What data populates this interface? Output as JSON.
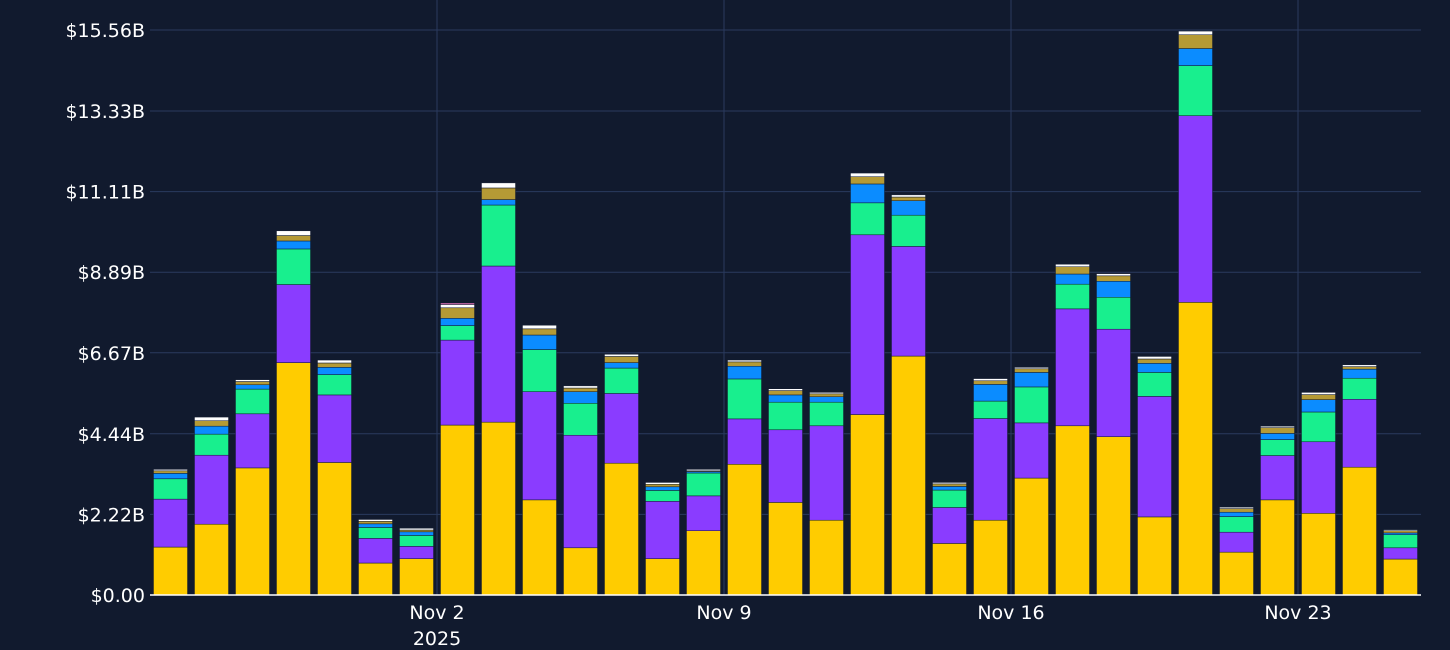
{
  "chart_data": {
    "type": "bar",
    "stacked": true,
    "y_tick_labels": [
      "$0.00",
      "$2.22B",
      "$4.44B",
      "$6.67B",
      "$8.89B",
      "$11.11B",
      "$13.33B",
      "$15.56B"
    ],
    "y_tick_values": [
      0,
      2.22,
      4.44,
      6.67,
      8.89,
      11.11,
      13.33,
      15.56
    ],
    "ylim": [
      0,
      15.56
    ],
    "x_tick_labels": [
      {
        "label": "Nov 2",
        "sublabel": "2025",
        "index": 6.5
      },
      {
        "label": "Nov 9",
        "index": 13.5
      },
      {
        "label": "Nov 16",
        "index": 20.5
      },
      {
        "label": "Nov 23",
        "index": 27.5
      }
    ],
    "grid": true,
    "series": [
      {
        "color": "#ffcc00",
        "values": [
          1.32,
          1.95,
          3.5,
          6.4,
          3.65,
          0.88,
          1.0,
          4.68,
          4.76,
          2.62,
          1.3,
          3.63,
          1.0,
          1.77,
          3.6,
          2.55,
          2.06,
          4.97,
          6.58,
          1.42,
          2.06,
          3.22,
          4.66,
          4.36,
          2.15,
          8.06,
          1.18,
          2.62,
          2.25,
          3.52,
          0.99
        ]
      },
      {
        "color": "#8a3cff",
        "values": [
          1.32,
          1.9,
          1.49,
          2.15,
          1.86,
          0.68,
          0.34,
          2.34,
          4.3,
          2.98,
          3.1,
          1.92,
          1.58,
          0.96,
          1.25,
          2.0,
          2.6,
          4.95,
          3.02,
          0.99,
          2.8,
          1.52,
          3.22,
          2.96,
          3.32,
          5.14,
          0.55,
          1.22,
          1.97,
          1.87,
          0.31
        ]
      },
      {
        "color": "#18ef8e",
        "values": [
          0.56,
          0.58,
          0.68,
          0.98,
          0.56,
          0.3,
          0.3,
          0.4,
          1.68,
          1.16,
          0.88,
          0.7,
          0.3,
          0.63,
          1.1,
          0.76,
          0.65,
          0.88,
          0.86,
          0.48,
          0.48,
          0.99,
          0.68,
          0.88,
          0.66,
          1.38,
          0.43,
          0.44,
          0.82,
          0.58,
          0.36
        ]
      },
      {
        "color": "#0b8cff",
        "values": [
          0.15,
          0.22,
          0.12,
          0.22,
          0.2,
          0.1,
          0.1,
          0.2,
          0.15,
          0.4,
          0.32,
          0.15,
          0.1,
          0.04,
          0.35,
          0.2,
          0.15,
          0.52,
          0.4,
          0.1,
          0.46,
          0.4,
          0.28,
          0.44,
          0.25,
          0.47,
          0.12,
          0.17,
          0.34,
          0.25,
          0.05
        ]
      },
      {
        "color": "#b59a35",
        "values": [
          0.07,
          0.15,
          0.09,
          0.15,
          0.12,
          0.07,
          0.05,
          0.29,
          0.32,
          0.17,
          0.1,
          0.17,
          0.07,
          0.02,
          0.12,
          0.12,
          0.08,
          0.2,
          0.1,
          0.07,
          0.1,
          0.1,
          0.2,
          0.15,
          0.12,
          0.38,
          0.1,
          0.16,
          0.14,
          0.07,
          0.06
        ]
      },
      {
        "color": "#ffffff",
        "values": [
          0.04,
          0.1,
          0.05,
          0.13,
          0.08,
          0.05,
          0.05,
          0.09,
          0.14,
          0.1,
          0.06,
          0.06,
          0.05,
          0.04,
          0.05,
          0.05,
          0.04,
          0.1,
          0.06,
          0.04,
          0.06,
          0.04,
          0.07,
          0.06,
          0.07,
          0.1,
          0.04,
          0.04,
          0.06,
          0.05,
          0.03
        ]
      },
      {
        "color": "#ff7fd0",
        "values": [
          0.0,
          0.0,
          0.0,
          0.0,
          0.0,
          0.0,
          0.0,
          0.04,
          0.0,
          0.0,
          0.0,
          0.0,
          0.0,
          0.0,
          0.0,
          0.0,
          0.0,
          0.0,
          0.0,
          0.0,
          0.0,
          0.0,
          0.0,
          0.0,
          0.0,
          0.0,
          0.0,
          0.0,
          0.0,
          0.0,
          0.0
        ]
      }
    ]
  }
}
